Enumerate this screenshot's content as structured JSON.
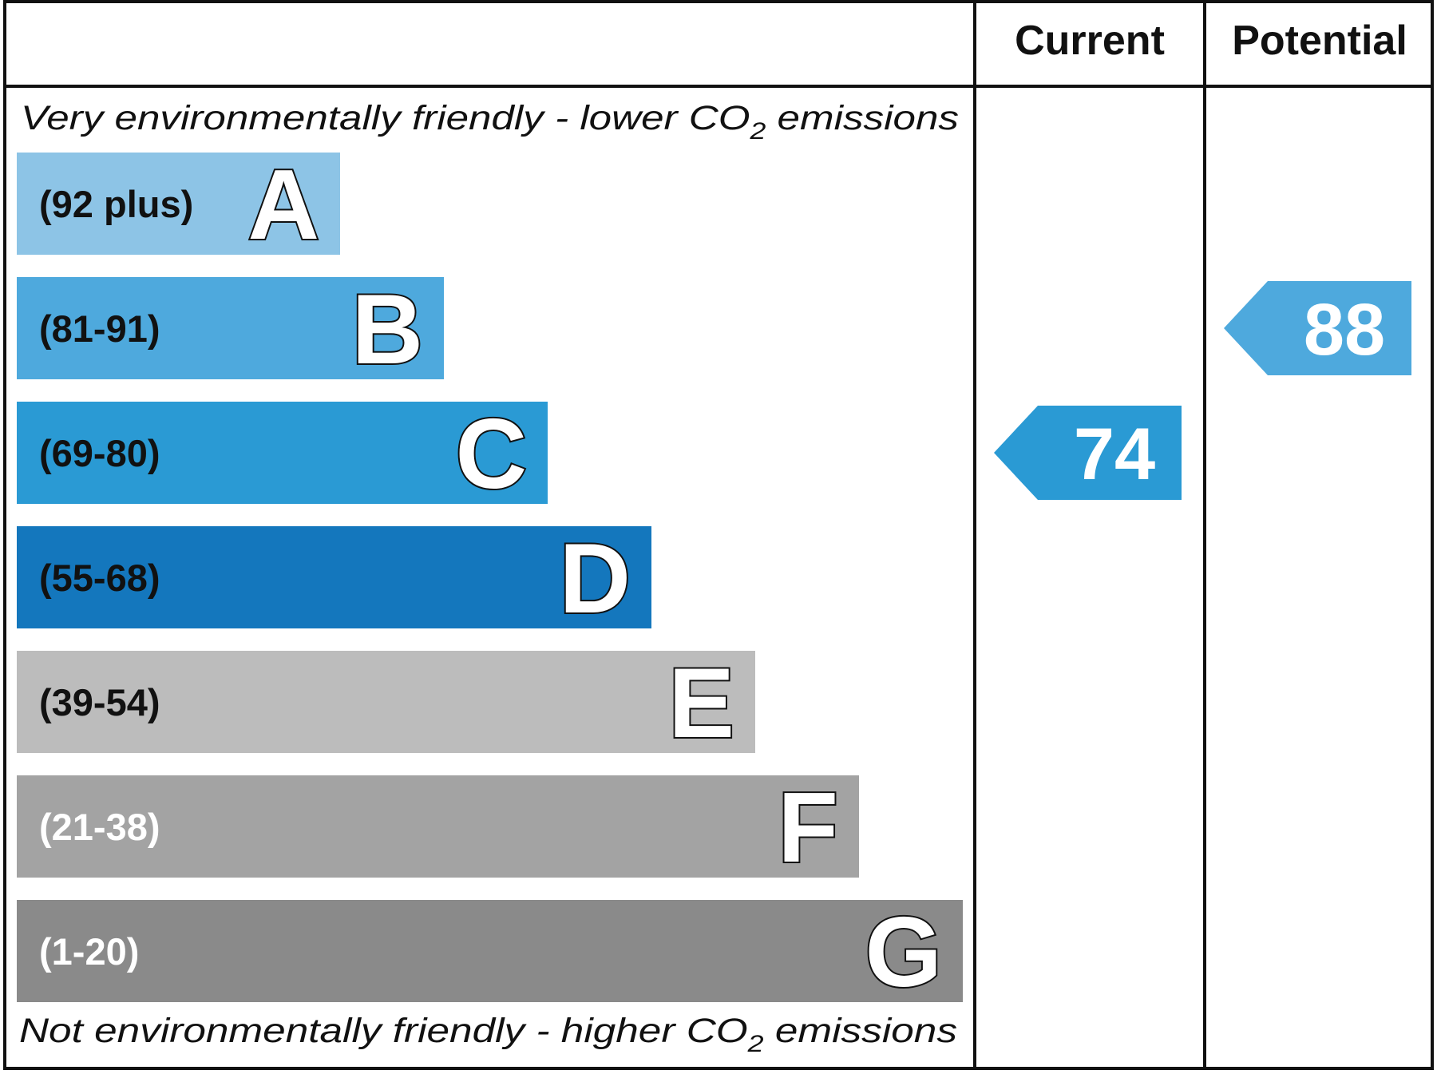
{
  "chart_data": {
    "type": "bar",
    "columns": {
      "current": "Current",
      "potential": "Potential"
    },
    "top_note": {
      "text": "Very environmentally friendly - lower CO",
      "sub": "2",
      "tail": " emissions"
    },
    "bottom_note": {
      "text": "Not environmentally friendly - higher CO",
      "sub": "2",
      "tail": " emissions"
    },
    "bands": [
      {
        "letter": "A",
        "range": "(92 plus)",
        "min": 92,
        "max": 100,
        "color": "#8dc4e6",
        "text_color": "#111111"
      },
      {
        "letter": "B",
        "range": "(81-91)",
        "min": 81,
        "max": 91,
        "color": "#4ea9dd",
        "text_color": "#111111"
      },
      {
        "letter": "C",
        "range": "(69-80)",
        "min": 69,
        "max": 80,
        "color": "#2a9ad4",
        "text_color": "#111111"
      },
      {
        "letter": "D",
        "range": "(55-68)",
        "min": 55,
        "max": 68,
        "color": "#1477bd",
        "text_color": "#111111"
      },
      {
        "letter": "E",
        "range": "(39-54)",
        "min": 39,
        "max": 54,
        "color": "#bcbcbc",
        "text_color": "#111111"
      },
      {
        "letter": "F",
        "range": "(21-38)",
        "min": 21,
        "max": 38,
        "color": "#a3a3a3",
        "text_color": "#ffffff"
      },
      {
        "letter": "G",
        "range": "(1-20)",
        "min": 1,
        "max": 20,
        "color": "#8a8a8a",
        "text_color": "#ffffff"
      }
    ],
    "current": {
      "value": "74",
      "band": "C",
      "color": "#2a9ad4"
    },
    "potential": {
      "value": "88",
      "band": "B",
      "color": "#4ea9dd"
    }
  }
}
